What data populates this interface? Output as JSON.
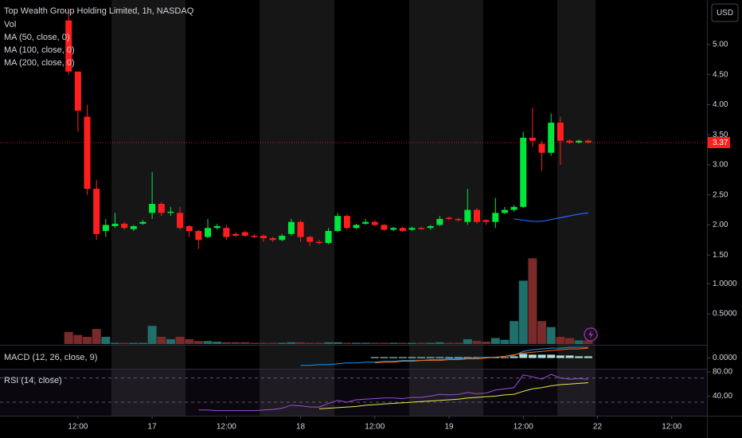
{
  "chart_data": {
    "type": "candlestick",
    "title": "Top Wealth Group Holding Limited, 1h, NASDAQ",
    "currency": "USD",
    "indicators": [
      "Vol",
      "MA (50, close, 0)",
      "MA (100, close, 0)",
      "MA (200, close, 0)"
    ],
    "up_color": "#00e63c",
    "down_color": "#ff1e1e",
    "x": [
      0,
      1,
      2,
      3,
      4,
      5,
      6,
      7,
      8,
      9,
      10,
      11,
      12,
      13,
      14,
      15,
      16,
      17,
      18,
      19,
      20,
      21,
      22,
      23,
      24,
      25,
      26,
      27,
      28,
      29,
      30,
      31,
      32,
      33,
      34,
      35,
      36,
      37,
      38,
      39,
      40,
      41,
      42,
      43,
      44,
      45,
      46,
      47,
      48,
      49,
      50,
      51,
      52,
      53,
      54,
      55,
      56
    ],
    "open": [
      5.4,
      4.55,
      3.8,
      2.6,
      1.9,
      1.98,
      2.02,
      1.93,
      2.02,
      2.2,
      2.35,
      2.2,
      2.2,
      1.98,
      1.9,
      1.8,
      1.95,
      1.95,
      1.85,
      1.88,
      1.82,
      1.82,
      1.78,
      1.75,
      1.85,
      2.05,
      1.8,
      1.72,
      1.7,
      1.9,
      2.15,
      1.95,
      2.02,
      2.05,
      2.0,
      1.92,
      1.95,
      1.92,
      1.95,
      1.95,
      2.0,
      2.12,
      2.1,
      2.05,
      2.25,
      2.08,
      2.05,
      2.2,
      2.25,
      2.3,
      3.45,
      3.35,
      3.2,
      3.7,
      3.4,
      3.37,
      3.4
    ],
    "high": [
      5.6,
      4.55,
      4.0,
      2.75,
      2.1,
      2.2,
      2.05,
      2.0,
      2.08,
      2.88,
      2.38,
      2.3,
      2.3,
      2.0,
      1.92,
      2.1,
      2.02,
      2.0,
      1.88,
      1.9,
      1.85,
      1.84,
      1.8,
      1.85,
      2.1,
      2.08,
      1.82,
      1.75,
      1.95,
      2.2,
      2.18,
      2.02,
      2.1,
      2.08,
      2.02,
      1.97,
      1.97,
      1.97,
      1.97,
      2.0,
      2.15,
      2.14,
      2.12,
      2.6,
      2.28,
      2.1,
      2.45,
      2.3,
      2.33,
      3.55,
      3.95,
      3.4,
      3.85,
      3.8,
      3.42,
      3.42,
      3.42
    ],
    "low": [
      4.5,
      3.55,
      2.5,
      1.75,
      1.8,
      1.95,
      1.92,
      1.9,
      2.0,
      2.1,
      2.15,
      2.15,
      1.92,
      1.8,
      1.6,
      1.78,
      1.92,
      1.75,
      1.8,
      1.8,
      1.78,
      1.72,
      1.72,
      1.73,
      1.82,
      1.72,
      1.65,
      1.68,
      1.68,
      1.88,
      1.92,
      1.93,
      2.0,
      1.98,
      1.9,
      1.9,
      1.88,
      1.9,
      1.92,
      1.92,
      1.98,
      2.08,
      2.05,
      2.0,
      2.02,
      2.0,
      1.95,
      2.18,
      2.22,
      2.28,
      3.3,
      2.9,
      3.15,
      3.0,
      3.35,
      3.35,
      3.35
    ],
    "close": [
      4.55,
      3.9,
      2.6,
      1.85,
      2.0,
      2.02,
      1.95,
      1.98,
      2.05,
      2.35,
      2.2,
      2.22,
      1.95,
      1.9,
      1.75,
      1.95,
      1.98,
      1.8,
      1.82,
      1.82,
      1.8,
      1.78,
      1.75,
      1.82,
      2.05,
      1.8,
      1.72,
      1.7,
      1.9,
      2.15,
      1.95,
      2.0,
      2.05,
      2.0,
      1.92,
      1.95,
      1.9,
      1.95,
      1.93,
      1.98,
      2.1,
      2.1,
      2.08,
      2.25,
      2.05,
      2.05,
      2.2,
      2.25,
      2.3,
      3.45,
      3.4,
      3.2,
      3.7,
      3.4,
      3.37,
      3.4,
      3.37
    ],
    "last_price": 3.37,
    "ma_line": {
      "color": "#2962ff",
      "values": [
        null,
        null,
        null,
        null,
        null,
        null,
        null,
        null,
        null,
        null,
        null,
        null,
        null,
        null,
        null,
        null,
        null,
        null,
        null,
        null,
        null,
        null,
        null,
        null,
        null,
        null,
        null,
        null,
        null,
        null,
        null,
        null,
        null,
        null,
        null,
        null,
        null,
        null,
        null,
        null,
        null,
        null,
        null,
        null,
        null,
        null,
        null,
        null,
        2.1,
        2.08,
        2.06,
        2.06,
        2.09,
        2.12,
        2.15,
        2.18,
        2.2
      ]
    },
    "xlim": [
      -7.4,
      68.8
    ],
    "xticks": [
      {
        "value": 1,
        "label": "12:00"
      },
      {
        "value": 9,
        "label": "17"
      },
      {
        "value": 17,
        "label": "12:00"
      },
      {
        "value": 25,
        "label": "18"
      },
      {
        "value": 33,
        "label": "12:00"
      },
      {
        "value": 41,
        "label": "19"
      },
      {
        "value": 49,
        "label": "12:00"
      },
      {
        "value": 57,
        "label": "22"
      },
      {
        "value": 65,
        "label": "12:00"
      }
    ],
    "ylim": [
      0.02,
      5.74
    ],
    "yticks": [
      {
        "value": 5,
        "label": "5.00"
      },
      {
        "value": 4.5,
        "label": "4.50"
      },
      {
        "value": 4,
        "label": "4.00"
      },
      {
        "value": 3.5,
        "label": "3.50"
      },
      {
        "value": 3,
        "label": "3.00"
      },
      {
        "value": 2.5,
        "label": "2.50"
      },
      {
        "value": 2,
        "label": "2.00"
      },
      {
        "value": 1.5,
        "label": "1.50"
      }
    ],
    "volume": {
      "up_color": "#1f6f6a",
      "down_color": "#7a2a2a",
      "y2lim": [
        0,
        5.7
      ],
      "y2ticks": [
        {
          "value": 1,
          "label": "1.0000"
        },
        {
          "value": 0.5,
          "label": "0.5000"
        }
      ],
      "values": [
        0.2,
        0.15,
        0.12,
        0.25,
        0.12,
        0.02,
        0.02,
        0.02,
        0.02,
        0.3,
        0.12,
        0.08,
        0.12,
        0.08,
        0.05,
        0.05,
        0.04,
        0.03,
        0.03,
        0.03,
        0.02,
        0.02,
        0.02,
        0.02,
        0.03,
        0.03,
        0.02,
        0.02,
        0.03,
        0.03,
        0.02,
        0.02,
        0.02,
        0.02,
        0.02,
        0.02,
        0.02,
        0.02,
        0.02,
        0.02,
        0.03,
        0.02,
        0.02,
        0.08,
        0.05,
        0.04,
        0.1,
        0.07,
        0.38,
        1.05,
        1.42,
        0.38,
        0.28,
        0.12,
        0.1,
        0.06,
        0.06
      ]
    },
    "macd": {
      "title": "MACD (12, 26, close, 9)",
      "ylim": [
        -0.13,
        0.15
      ],
      "yticks": [
        {
          "value": 0,
          "label": "0.0000"
        }
      ],
      "macd_color": "#2196f3",
      "signal_color": "#ff6d00",
      "hist_color": "#b2dfdb",
      "macd_values": [
        null,
        null,
        null,
        null,
        null,
        null,
        null,
        null,
        null,
        null,
        null,
        null,
        null,
        null,
        null,
        null,
        null,
        null,
        null,
        null,
        null,
        null,
        null,
        null,
        null,
        -0.09,
        -0.09,
        -0.08,
        -0.08,
        -0.07,
        -0.06,
        -0.06,
        -0.05,
        -0.05,
        -0.04,
        -0.04,
        -0.03,
        -0.03,
        -0.03,
        -0.02,
        -0.02,
        -0.01,
        -0.01,
        0,
        0,
        0.01,
        0.01,
        0.02,
        0.03,
        0.08,
        0.1,
        0.11,
        0.12,
        0.12,
        0.13,
        0.13,
        0.13
      ],
      "signal_values": [
        null,
        null,
        null,
        null,
        null,
        null,
        null,
        null,
        null,
        null,
        null,
        null,
        null,
        null,
        null,
        null,
        null,
        null,
        null,
        null,
        null,
        null,
        null,
        null,
        null,
        null,
        null,
        null,
        null,
        null,
        null,
        null,
        null,
        -0.06,
        -0.05,
        -0.05,
        -0.04,
        -0.04,
        -0.03,
        -0.03,
        -0.03,
        -0.02,
        -0.02,
        -0.01,
        -0.01,
        0,
        0.01,
        0.02,
        0.04,
        0.06,
        0.07,
        0.08,
        0.09,
        0.1,
        0.11,
        0.11,
        0.12
      ],
      "hist_values": [
        null,
        null,
        null,
        null,
        null,
        null,
        null,
        null,
        null,
        null,
        null,
        null,
        null,
        null,
        null,
        null,
        null,
        null,
        null,
        null,
        null,
        null,
        null,
        null,
        null,
        null,
        null,
        null,
        null,
        null,
        null,
        null,
        null,
        0.01,
        0.01,
        0.01,
        0.01,
        0.01,
        0.01,
        0.01,
        0.01,
        0.01,
        0.01,
        0.01,
        0.01,
        0.01,
        0.01,
        0.01,
        0.02,
        0.05,
        0.04,
        0.04,
        0.04,
        0.03,
        0.03,
        0.02,
        0.02
      ]
    },
    "rsi": {
      "title": "RSI (14, close)",
      "ylim": [
        7.7,
        83.9
      ],
      "yticks": [
        {
          "value": 80,
          "label": "80.00"
        },
        {
          "value": 40,
          "label": "40.00"
        }
      ],
      "bands": [
        70,
        30
      ],
      "rsi_color": "#9c4fd6",
      "ma_color": "#e8e84a",
      "rsi_values": [
        null,
        null,
        null,
        null,
        null,
        null,
        null,
        null,
        null,
        null,
        null,
        null,
        null,
        null,
        17,
        17,
        16,
        16,
        16,
        16,
        16,
        17,
        18,
        20,
        25,
        24,
        22,
        22,
        28,
        33,
        30,
        34,
        35,
        36,
        37,
        37,
        36,
        38,
        38,
        40,
        43,
        42,
        43,
        46,
        44,
        45,
        50,
        52,
        54,
        75,
        72,
        68,
        76,
        70,
        68,
        69,
        68
      ],
      "ma_values": [
        null,
        null,
        null,
        null,
        null,
        null,
        null,
        null,
        null,
        null,
        null,
        null,
        null,
        null,
        null,
        null,
        null,
        null,
        null,
        null,
        null,
        null,
        null,
        null,
        null,
        null,
        null,
        19,
        20,
        21,
        22,
        23,
        25,
        26,
        27,
        28,
        29,
        30,
        31,
        32,
        33,
        34,
        35,
        37,
        38,
        39,
        40,
        42,
        43,
        48,
        52,
        54,
        57,
        59,
        60,
        61,
        62
      ]
    }
  }
}
